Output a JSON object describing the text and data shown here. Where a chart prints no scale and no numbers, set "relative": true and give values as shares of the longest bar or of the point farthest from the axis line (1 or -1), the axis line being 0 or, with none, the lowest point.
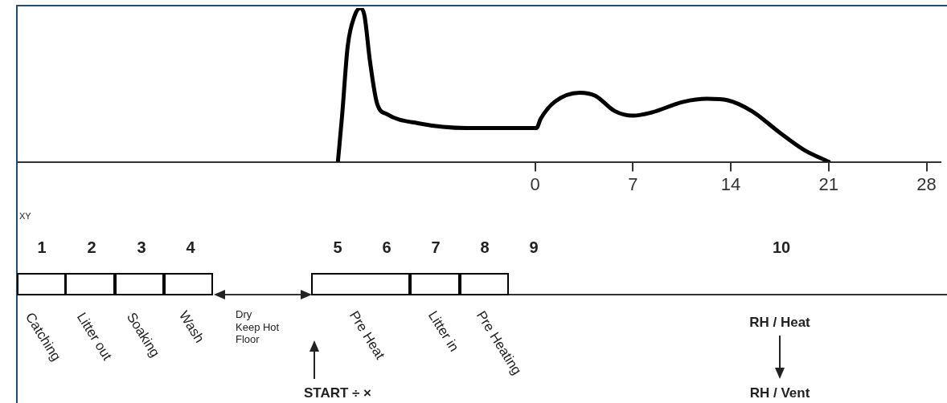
{
  "chart_data": {
    "type": "line",
    "relative": true,
    "x": [
      -14.1,
      -13.8,
      -13.4,
      -12.9,
      -12.5,
      -12.2,
      -11.8,
      -11.3,
      -10.6,
      -8.3,
      -4.9,
      0.1,
      0.4,
      1.4,
      3.2,
      4.3,
      5.7,
      7,
      8.3,
      10.6,
      12.3,
      13.8,
      15.5,
      17.5,
      19.2,
      21
    ],
    "values": [
      0,
      0.3,
      0.75,
      0.95,
      1,
      0.95,
      0.65,
      0.38,
      0.31,
      0.25,
      0.22,
      0.22,
      0.28,
      0.39,
      0.45,
      0.43,
      0.33,
      0.3,
      0.32,
      0.39,
      0.41,
      0.4,
      0.33,
      0.19,
      0.08,
      0
    ],
    "color": "#000000",
    "line_style": "solid",
    "marker": "none",
    "grid": false,
    "legend": false,
    "xlim": [
      -37,
      29
    ],
    "xticks": [
      0,
      7,
      14,
      21,
      28
    ],
    "annotations": [
      "XY",
      "1",
      "2",
      "3",
      "4",
      "5",
      "6",
      "7",
      "8",
      "9",
      "10",
      "Catching",
      "Litter out",
      "Soaking",
      "Wash",
      "Dry\nKeep Hot\nFloor",
      "Pre Heat",
      "Litter in",
      "Pre Heating",
      "START ÷ ×",
      "RH / Heat",
      "RH / Vent"
    ]
  }
}
